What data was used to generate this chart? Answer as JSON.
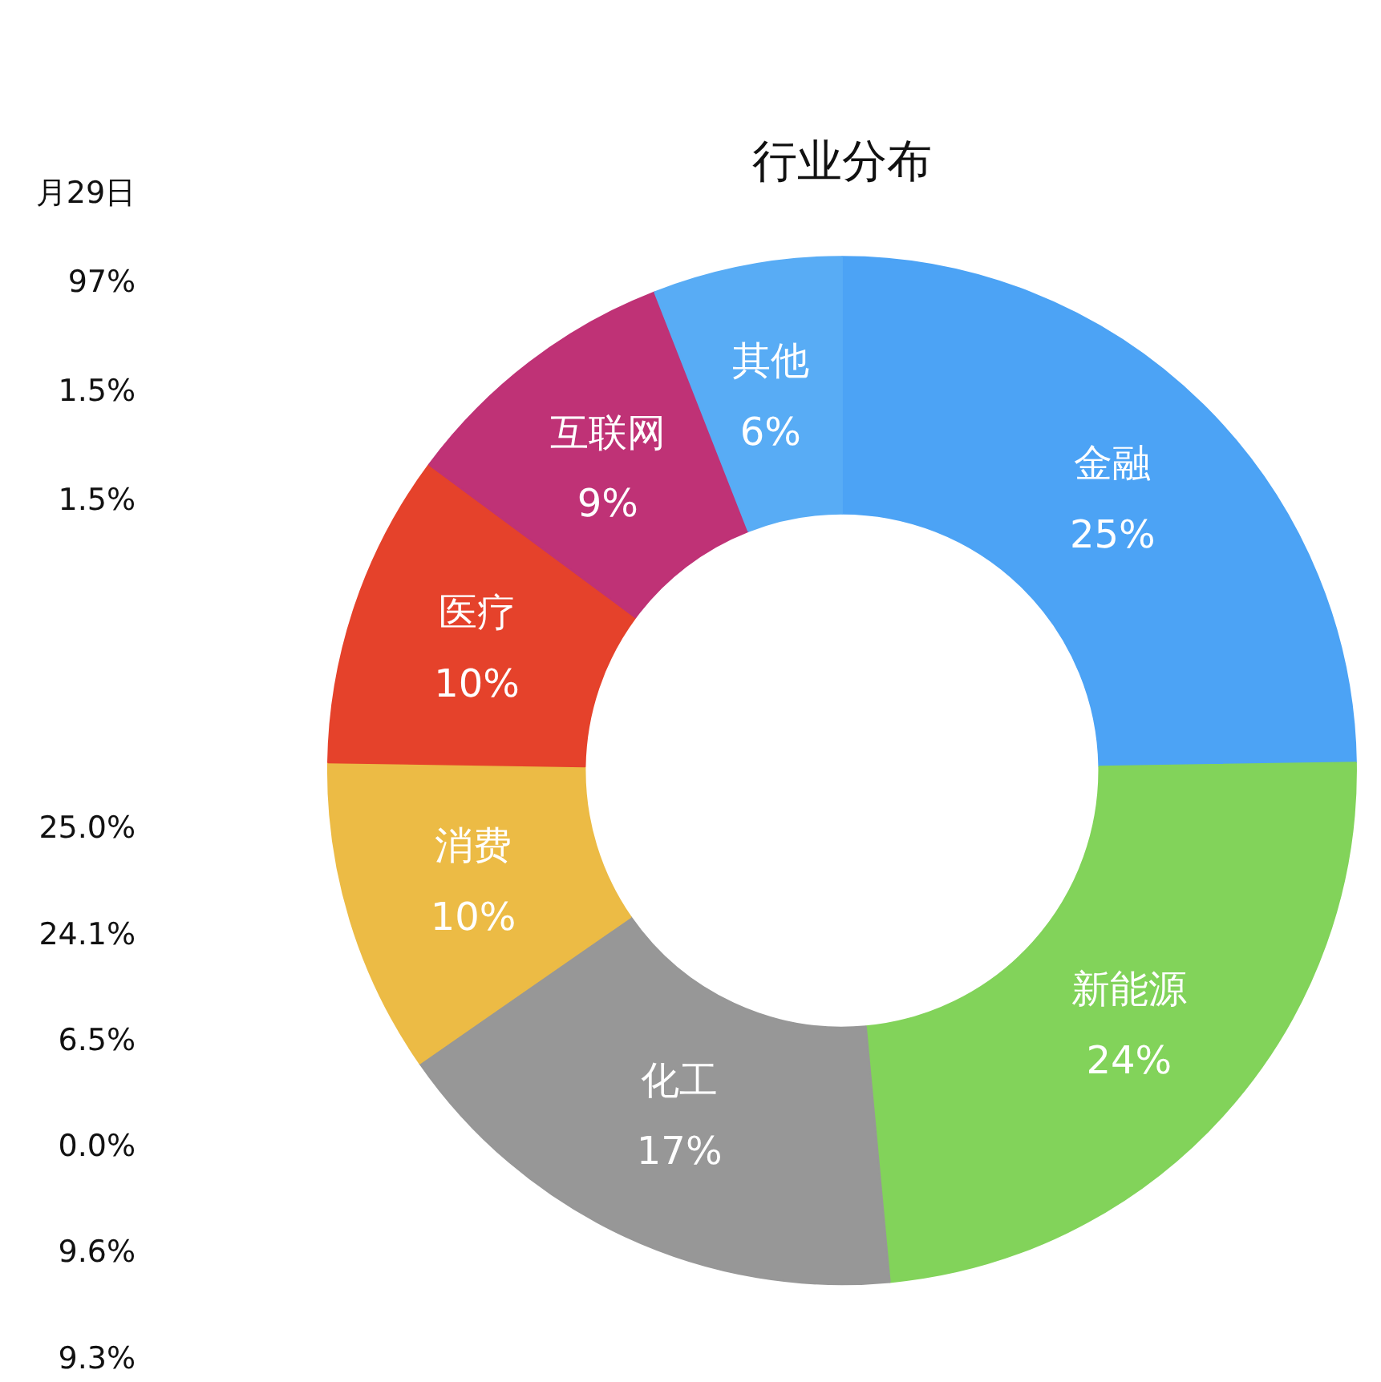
{
  "chart_data": [
    {
      "type": "other",
      "annotations": [
        "月29日",
        "97%",
        "1.5%",
        "1.5%",
        "25.0%",
        "24.1%",
        "6.5%",
        "0.0%",
        "9.6%",
        "9.3%"
      ]
    },
    {
      "type": "donut",
      "title": "行业分布",
      "categories": [
        "金融",
        "新能源",
        "化工",
        "消费",
        "医疗",
        "互联网",
        "其他"
      ],
      "values": [
        25,
        24,
        17,
        10,
        10,
        9,
        6
      ],
      "value_labels": [
        "25%",
        "24%",
        "17%",
        "10%",
        "10%",
        "9%",
        "6%"
      ],
      "colors": [
        "#4ca3f5",
        "#82d35a",
        "#979797",
        "#ecbb45",
        "#e5422b",
        "#bf3276",
        "#58acf5"
      ]
    }
  ]
}
